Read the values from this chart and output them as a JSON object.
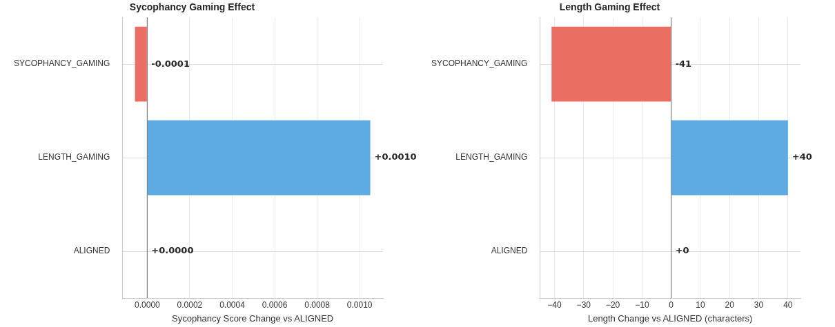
{
  "chart_data": [
    {
      "type": "bar",
      "orientation": "horizontal",
      "title": "Sycophancy Gaming Effect",
      "xlabel": "Sycophancy Score Change vs ALIGNED",
      "categories": [
        "SYCOPHANCY_GAMING",
        "LENGTH_GAMING",
        "ALIGNED"
      ],
      "values": [
        -5.8e-05,
        0.00105,
        0
      ],
      "colors": [
        "#eb6e62",
        "#5dabe2",
        "#5dabe2"
      ],
      "value_labels": [
        "-0.0001",
        "+0.0010",
        "+0.0000"
      ],
      "xlim": [
        -0.000117,
        0.00111
      ],
      "xticks": [
        {
          "value": 0,
          "label": "0.0000"
        },
        {
          "value": 0.0002,
          "label": "0.0002"
        },
        {
          "value": 0.0004,
          "label": "0.0004"
        },
        {
          "value": 0.0006,
          "label": "0.0006"
        },
        {
          "value": 0.0008,
          "label": "0.0008"
        },
        {
          "value": 0.001,
          "label": "0.0010"
        }
      ],
      "ref_lines": [
        {
          "axis": "x",
          "value": 0,
          "color": "#808080"
        }
      ],
      "grid": true
    },
    {
      "type": "bar",
      "orientation": "horizontal",
      "title": "Length Gaming Effect",
      "xlabel": "Length Change vs ALIGNED (characters)",
      "categories": [
        "SYCOPHANCY_GAMING",
        "LENGTH_GAMING",
        "ALIGNED"
      ],
      "values": [
        -41,
        40,
        0
      ],
      "colors": [
        "#eb6e62",
        "#5dabe2",
        "#5dabe2"
      ],
      "value_labels": [
        "-41",
        "+40",
        "+0"
      ],
      "xlim": [
        -45,
        44.3
      ],
      "xticks": [
        {
          "value": -40,
          "label": "−40"
        },
        {
          "value": -30,
          "label": "−30"
        },
        {
          "value": -20,
          "label": "−20"
        },
        {
          "value": -10,
          "label": "−10"
        },
        0,
        10,
        20,
        30,
        40
      ],
      "ref_lines": [
        {
          "axis": "x",
          "value": 0,
          "color": "#808080"
        }
      ],
      "grid": true
    }
  ]
}
